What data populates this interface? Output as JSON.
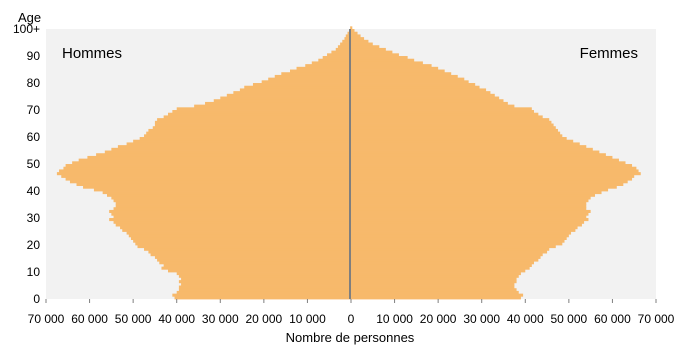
{
  "chart_data": {
    "type": "bar",
    "orientation": "horizontal-population-pyramid",
    "xlabel": "Nombre de personnes",
    "ylabel": "Age",
    "xlim": [
      -70000,
      70000
    ],
    "ylim": [
      0,
      100
    ],
    "y_ticks": [
      "0",
      "10",
      "20",
      "30",
      "40",
      "50",
      "60",
      "70",
      "80",
      "90",
      "100+"
    ],
    "x_tick_values": [
      -70000,
      -60000,
      -50000,
      -40000,
      -30000,
      -20000,
      -10000,
      0,
      10000,
      20000,
      30000,
      40000,
      50000,
      60000,
      70000
    ],
    "x_tick_labels": [
      "70 000",
      "60 000",
      "50 000",
      "40 000",
      "30 000",
      "20 000",
      "10 000",
      "0",
      "10 000",
      "20 000",
      "30 000",
      "40 000",
      "50 000",
      "60 000",
      "70 000"
    ],
    "grid": false,
    "plot_background": "#f2f2f2",
    "bar_color": "#f7b96b",
    "center_line_color": "#7f7f7f",
    "series": [
      {
        "name": "Hommes",
        "ages": [
          0,
          1,
          2,
          3,
          4,
          5,
          6,
          7,
          8,
          9,
          10,
          11,
          12,
          13,
          14,
          15,
          16,
          17,
          18,
          19,
          20,
          21,
          22,
          23,
          24,
          25,
          26,
          27,
          28,
          29,
          30,
          31,
          32,
          33,
          34,
          35,
          36,
          37,
          38,
          39,
          40,
          41,
          42,
          43,
          44,
          45,
          46,
          47,
          48,
          49,
          50,
          51,
          52,
          53,
          54,
          55,
          56,
          57,
          58,
          59,
          60,
          61,
          62,
          63,
          64,
          65,
          66,
          67,
          68,
          69,
          70,
          71,
          72,
          73,
          74,
          75,
          76,
          77,
          78,
          79,
          80,
          81,
          82,
          83,
          84,
          85,
          86,
          87,
          88,
          89,
          90,
          91,
          92,
          93,
          94,
          95,
          96,
          97,
          98,
          99,
          100
        ],
        "values": [
          40500,
          41000,
          40000,
          39500,
          39500,
          39000,
          39500,
          39000,
          39500,
          40000,
          42000,
          43500,
          43000,
          44000,
          44500,
          45000,
          46000,
          46500,
          47500,
          49000,
          49500,
          50000,
          50500,
          51000,
          51500,
          52500,
          53000,
          54000,
          54500,
          55500,
          54500,
          55000,
          55500,
          54500,
          54000,
          54000,
          54500,
          55000,
          56000,
          57000,
          59000,
          61500,
          63000,
          64500,
          65500,
          66500,
          67500,
          67000,
          66000,
          65500,
          64000,
          62500,
          60500,
          58500,
          56500,
          55000,
          53500,
          51500,
          50000,
          48500,
          47500,
          47000,
          46500,
          45500,
          45000,
          45000,
          44500,
          43000,
          42000,
          41000,
          40000,
          36000,
          33500,
          31500,
          30000,
          28500,
          27000,
          25500,
          24500,
          22500,
          20500,
          19000,
          17500,
          16000,
          14000,
          12500,
          10500,
          9000,
          7500,
          6500,
          5500,
          4500,
          3500,
          3000,
          2500,
          2000,
          1500,
          1200,
          800,
          400,
          200
        ]
      },
      {
        "name": "Femmes",
        "ages": [
          0,
          1,
          2,
          3,
          4,
          5,
          6,
          7,
          8,
          9,
          10,
          11,
          12,
          13,
          14,
          15,
          16,
          17,
          18,
          19,
          20,
          21,
          22,
          23,
          24,
          25,
          26,
          27,
          28,
          29,
          30,
          31,
          32,
          33,
          34,
          35,
          36,
          37,
          38,
          39,
          40,
          41,
          42,
          43,
          44,
          45,
          46,
          47,
          48,
          49,
          50,
          51,
          52,
          53,
          54,
          55,
          56,
          57,
          58,
          59,
          60,
          61,
          62,
          63,
          64,
          65,
          66,
          67,
          68,
          69,
          70,
          71,
          72,
          73,
          74,
          75,
          76,
          77,
          78,
          79,
          80,
          81,
          82,
          83,
          84,
          85,
          86,
          87,
          88,
          89,
          90,
          91,
          92,
          93,
          94,
          95,
          96,
          97,
          98,
          99,
          100
        ],
        "values": [
          39000,
          39500,
          38500,
          38000,
          37500,
          37500,
          38000,
          38000,
          38500,
          39000,
          40000,
          41000,
          41500,
          42000,
          43000,
          43500,
          44000,
          45000,
          45500,
          47000,
          48500,
          49000,
          49500,
          50000,
          50500,
          51500,
          52000,
          53000,
          53500,
          54500,
          54000,
          54500,
          55000,
          54000,
          54000,
          54000,
          54500,
          55000,
          56000,
          57500,
          59000,
          61000,
          62500,
          63500,
          64500,
          65000,
          66500,
          66000,
          65500,
          64500,
          63000,
          61500,
          60000,
          58500,
          57000,
          55500,
          54000,
          52500,
          51000,
          49500,
          48500,
          48000,
          47500,
          47000,
          46500,
          46000,
          45500,
          44000,
          43000,
          42000,
          41500,
          37500,
          36000,
          35000,
          34000,
          33000,
          32000,
          31000,
          29500,
          28500,
          27000,
          26000,
          24500,
          23000,
          21500,
          20000,
          18500,
          16500,
          14500,
          13000,
          11000,
          9500,
          8000,
          6500,
          5000,
          4000,
          3000,
          2200,
          1500,
          800,
          300
        ]
      }
    ]
  }
}
